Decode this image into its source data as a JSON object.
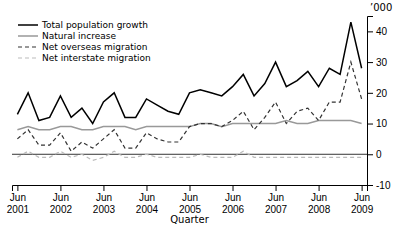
{
  "chart_data": {
    "type": "line",
    "xlabel": "Quarter",
    "ylabel": "’000",
    "categories": [
      "Jun 2001",
      null,
      null,
      null,
      "Jun 2002",
      null,
      null,
      null,
      "Jun 2003",
      null,
      null,
      null,
      "Jun 2004",
      null,
      null,
      null,
      "Jun 2005",
      null,
      null,
      null,
      "Jun 2006",
      null,
      null,
      null,
      "Jun 2007",
      null,
      null,
      null,
      "Jun 2008",
      null,
      null,
      null,
      "Jun 2009"
    ],
    "series": [
      {
        "name": "Total population growth",
        "color": "#000000",
        "line_style": "solid",
        "values": [
          13,
          20,
          11,
          12,
          19,
          12,
          15,
          10,
          17,
          20,
          12,
          12,
          18,
          16,
          14,
          13,
          20,
          21,
          20,
          19,
          22,
          26,
          19,
          23,
          30,
          22,
          24,
          27,
          22,
          28,
          26,
          43,
          28
        ]
      },
      {
        "name": "Natural increase",
        "color": "#999999",
        "line_style": "solid",
        "values": [
          8,
          9,
          8,
          8,
          9,
          9,
          8,
          8,
          9,
          9,
          9,
          8,
          9,
          9,
          9,
          9,
          9,
          10,
          10,
          9,
          10,
          10,
          10,
          10,
          10,
          11,
          10,
          10,
          11,
          11,
          11,
          11,
          10
        ]
      },
      {
        "name": "Net overseas migration",
        "color": "#333333",
        "line_style": "dashed",
        "values": [
          5,
          8,
          3,
          3,
          7,
          1,
          4,
          2,
          5,
          8,
          2,
          2,
          7,
          5,
          4,
          4,
          9,
          10,
          10,
          9,
          11,
          14,
          8,
          12,
          17,
          10,
          14,
          15,
          11,
          17,
          17,
          30,
          18
        ]
      },
      {
        "name": "Net interstate migration",
        "color": "#bbbbbb",
        "line_style": "dashed",
        "values": [
          -1,
          1,
          -1,
          -1,
          1,
          -1,
          0,
          -2,
          -1,
          1,
          -1,
          -1,
          0,
          -1,
          -1,
          -1,
          -1,
          0,
          -1,
          -1,
          -1,
          1,
          -1,
          -1,
          -1,
          -1,
          -1,
          -1,
          -1,
          -1,
          -1,
          -1,
          -1
        ]
      }
    ],
    "ylim": [
      -10,
      45
    ],
    "yticks": [
      -10,
      0,
      10,
      20,
      30,
      40
    ],
    "grid": false,
    "legend": "upper left"
  }
}
